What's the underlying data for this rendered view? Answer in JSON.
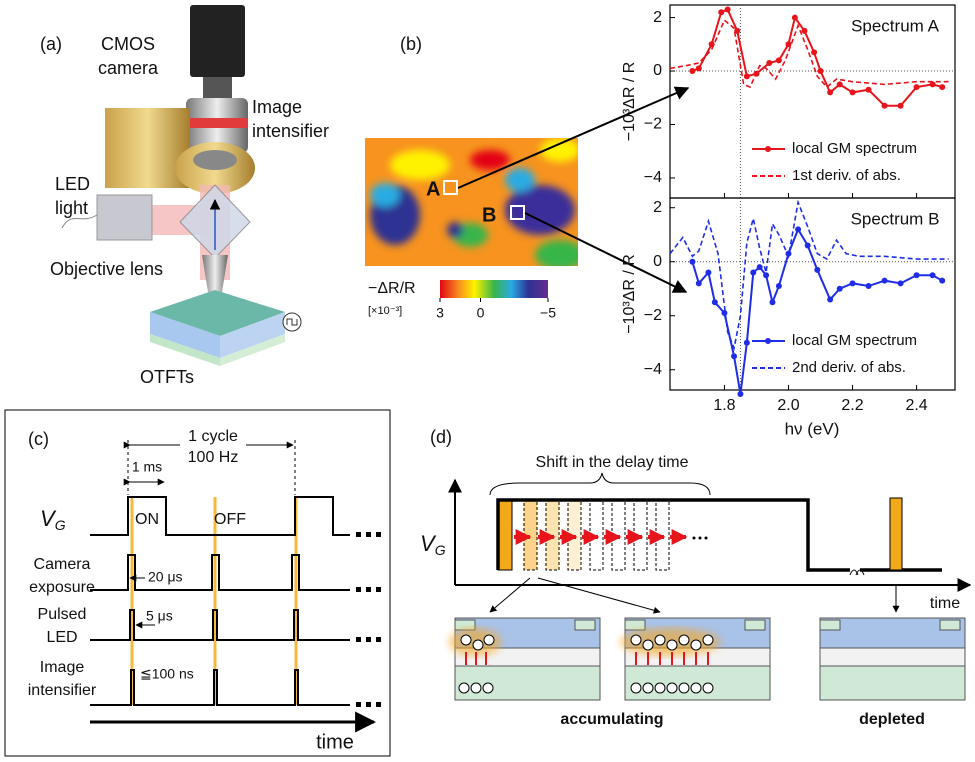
{
  "panel_a": {
    "label": "(a)",
    "camera": [
      "CMOS",
      "camera"
    ],
    "intensifier": [
      "Image",
      "intensifier"
    ],
    "led": [
      "LED",
      "light"
    ],
    "objective": "Objective lens",
    "sample": "OTFTs"
  },
  "panel_b": {
    "label": "(b)",
    "map_labels": [
      "A",
      "B"
    ],
    "colorbar": {
      "label": "−ΔR/R",
      "unit": "[×10⁻³]",
      "clim": [
        3,
        -5
      ],
      "ticks": [
        3,
        0,
        {
          "value": -5,
          "label": "−5"
        }
      ]
    },
    "charts": [
      {
        "type": "line",
        "title": "Spectrum A",
        "ylabel": "−10³ΔR / R",
        "xlim": [
          1.63,
          2.52
        ],
        "ylim": [
          -4.75,
          2.47
        ],
        "xticks": [
          1.8,
          2,
          2.2,
          2.4
        ],
        "xtick_labels": false,
        "yticks": [
          2,
          0,
          {
            "value": -2,
            "label": "−2"
          },
          {
            "value": -4,
            "label": "−4"
          }
        ],
        "vline": 1.85,
        "legend": "lower right",
        "series": [
          {
            "name": "local GM spectrum",
            "color": "#e8141b",
            "markers": true,
            "dashed": false,
            "x": [
              1.7,
              1.72,
              1.76,
              1.79,
              1.81,
              1.84,
              1.87,
              1.9,
              1.94,
              1.97,
              2.0,
              2.02,
              2.05,
              2.08,
              2.1,
              2.13,
              2.16,
              2.2,
              2.25,
              2.3,
              2.35,
              2.4,
              2.45,
              2.48
            ],
            "values": [
              0.0,
              0.1,
              1.0,
              2.2,
              2.3,
              1.5,
              -0.2,
              -0.1,
              0.3,
              0.4,
              1.0,
              2.0,
              1.5,
              0.7,
              0.0,
              -0.8,
              -0.5,
              -0.8,
              -0.7,
              -1.3,
              -1.3,
              -0.6,
              -0.5,
              -0.6
            ]
          },
          {
            "name": "1st deriv. of abs.",
            "color": "#e8141b",
            "markers": false,
            "dashed": true,
            "x": [
              1.63,
              1.68,
              1.72,
              1.76,
              1.8,
              1.83,
              1.86,
              1.88,
              1.91,
              1.93,
              1.96,
              1.99,
              2.03,
              2.06,
              2.09,
              2.12,
              2.15,
              2.2,
              2.3,
              2.4,
              2.5
            ],
            "values": [
              0.1,
              0.2,
              0.3,
              0.8,
              1.9,
              1.6,
              -0.5,
              -0.6,
              0.2,
              0.1,
              -0.3,
              0.4,
              1.7,
              0.8,
              -0.2,
              -0.6,
              -0.3,
              -0.4,
              -0.5,
              -0.4,
              -0.4
            ]
          }
        ]
      },
      {
        "type": "line",
        "title": "Spectrum B",
        "ylabel": "−10³ΔR / R",
        "xlabel": "hν (eV)",
        "xlim": [
          1.63,
          2.52
        ],
        "ylim": [
          -4.75,
          2.36
        ],
        "xticks": [
          1.8,
          {
            "value": 2,
            "label": "2.0"
          },
          2.2,
          2.4
        ],
        "xtick_labels": true,
        "yticks": [
          2,
          0,
          {
            "value": -2,
            "label": "−2"
          },
          {
            "value": -4,
            "label": "−4"
          }
        ],
        "vline": 1.85,
        "legend": "lower right",
        "series": [
          {
            "name": "local GM spectrum",
            "color": "#1f2ee6",
            "markers": true,
            "dashed": false,
            "x": [
              1.7,
              1.72,
              1.75,
              1.77,
              1.8,
              1.83,
              1.85,
              1.87,
              1.89,
              1.91,
              1.93,
              1.95,
              1.97,
              2.0,
              2.03,
              2.06,
              2.09,
              2.13,
              2.16,
              2.2,
              2.25,
              2.3,
              2.35,
              2.4,
              2.45,
              2.48
            ],
            "values": [
              0.0,
              -0.8,
              -0.4,
              -1.5,
              -1.9,
              -3.5,
              -4.9,
              -3.0,
              -0.4,
              -0.2,
              -0.5,
              -1.5,
              -0.9,
              0.3,
              1.2,
              0.6,
              -0.3,
              -1.4,
              -1.0,
              -0.8,
              -0.9,
              -0.7,
              -0.8,
              -0.5,
              -0.5,
              -0.7
            ]
          },
          {
            "name": "2nd deriv. of abs.",
            "color": "#1f2ee6",
            "markers": false,
            "dashed": true,
            "x": [
              1.63,
              1.67,
              1.7,
              1.72,
              1.75,
              1.78,
              1.81,
              1.83,
              1.85,
              1.87,
              1.89,
              1.91,
              1.93,
              1.95,
              1.97,
              2.0,
              2.03,
              2.06,
              2.09,
              2.12,
              2.15,
              2.18,
              2.22,
              2.3,
              2.4,
              2.5
            ],
            "values": [
              0.3,
              0.9,
              0.2,
              0.4,
              1.5,
              0.3,
              -2.6,
              -3.2,
              -2.0,
              0.7,
              1.6,
              0.5,
              -0.4,
              1.4,
              1.0,
              0.2,
              2.2,
              1.3,
              0.3,
              0.1,
              0.8,
              0.3,
              0.2,
              0.2,
              0.1,
              0.1
            ]
          }
        ]
      }
    ]
  },
  "panel_c": {
    "label": "(c)",
    "cycle": [
      "1 cycle",
      "100 Hz"
    ],
    "width": "1 ms",
    "vg": [
      "V",
      "G"
    ],
    "on": "ON",
    "off": "OFF",
    "camera": [
      "Camera",
      "exposure"
    ],
    "camera_width": "20 μs",
    "led": [
      "Pulsed",
      "LED"
    ],
    "led_width": "5 μs",
    "intensifier": [
      "Image",
      "intensifier"
    ],
    "intensifier_width": "≦100 ns",
    "time": "time"
  },
  "panel_d": {
    "label": "(d)",
    "shift": "Shift in the delay time",
    "vg": [
      "V",
      "G"
    ],
    "time": "time",
    "states": [
      "accumulating",
      "depleted"
    ]
  }
}
